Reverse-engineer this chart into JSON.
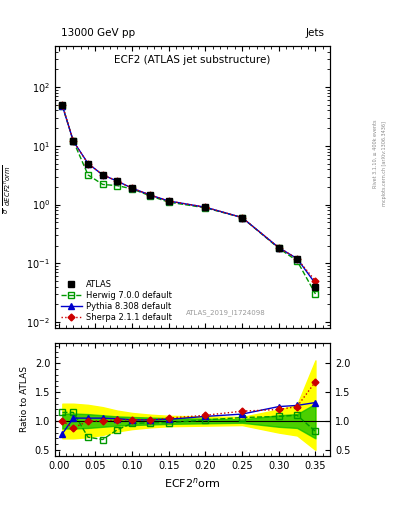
{
  "title_top": "13000 GeV pp",
  "title_right": "Jets",
  "plot_title": "ECF2 (ATLAS jet substructure)",
  "xlabel": "ECF2$^{n}$orm",
  "ylabel_main": "$\\frac{1}{\\sigma}$ $\\frac{d\\sigma}{dECF2^{n}orm}$",
  "ylabel_ratio": "Ratio to ATLAS",
  "watermark": "ATLAS_2019_I1724098",
  "right_label1": "Rivet 3.1.10, ≥ 400k events",
  "right_label2": "mcplots.cern.ch [arXiv:1306.3436]",
  "x_centers": [
    0.005,
    0.02,
    0.04,
    0.06,
    0.08,
    0.1,
    0.125,
    0.15,
    0.2,
    0.25,
    0.3,
    0.325,
    0.35
  ],
  "atlas_y": [
    50,
    12,
    5.0,
    3.2,
    2.5,
    1.9,
    1.45,
    1.15,
    0.9,
    0.6,
    0.18,
    0.12,
    0.04
  ],
  "herwig_y": [
    48,
    12,
    3.2,
    2.2,
    2.1,
    1.85,
    1.4,
    1.1,
    0.88,
    0.6,
    0.18,
    0.11,
    0.03
  ],
  "pythia_y": [
    48,
    12,
    5.0,
    3.2,
    2.5,
    1.9,
    1.45,
    1.15,
    0.9,
    0.6,
    0.185,
    0.12,
    0.045
  ],
  "sherpa_y": [
    50,
    12,
    5.0,
    3.2,
    2.5,
    1.9,
    1.45,
    1.15,
    0.9,
    0.6,
    0.185,
    0.12,
    0.05
  ],
  "herwig_ratio": [
    1.15,
    1.15,
    0.72,
    0.68,
    0.85,
    0.96,
    0.97,
    0.97,
    1.02,
    1.06,
    1.08,
    1.1,
    0.82
  ],
  "pythia_ratio": [
    0.78,
    1.05,
    1.05,
    1.05,
    1.04,
    1.02,
    1.02,
    1.03,
    1.08,
    1.12,
    1.25,
    1.27,
    1.32
  ],
  "sherpa_ratio": [
    1.0,
    0.88,
    1.0,
    1.0,
    1.02,
    1.02,
    1.02,
    1.05,
    1.1,
    1.17,
    1.2,
    1.25,
    1.68
  ],
  "band_yellow_low": [
    0.7,
    0.7,
    0.72,
    0.76,
    0.82,
    0.86,
    0.89,
    0.91,
    0.92,
    0.93,
    0.8,
    0.75,
    0.5
  ],
  "band_yellow_high": [
    1.3,
    1.3,
    1.28,
    1.24,
    1.18,
    1.14,
    1.11,
    1.09,
    1.08,
    1.07,
    1.2,
    1.28,
    2.05
  ],
  "band_green_low": [
    0.87,
    0.87,
    0.88,
    0.9,
    0.92,
    0.93,
    0.94,
    0.95,
    0.96,
    0.97,
    0.9,
    0.88,
    0.7
  ],
  "band_green_high": [
    1.13,
    1.13,
    1.12,
    1.1,
    1.08,
    1.07,
    1.06,
    1.05,
    1.04,
    1.03,
    1.1,
    1.12,
    1.3
  ],
  "atlas_color": "#000000",
  "herwig_color": "#009900",
  "pythia_color": "#0000cc",
  "sherpa_color": "#cc0000",
  "yellow_color": "#ffff00",
  "green_color": "#00bb00",
  "ylim_main": [
    0.008,
    500
  ],
  "ylim_ratio": [
    0.4,
    2.35
  ],
  "xlim": [
    -0.005,
    0.37
  ]
}
